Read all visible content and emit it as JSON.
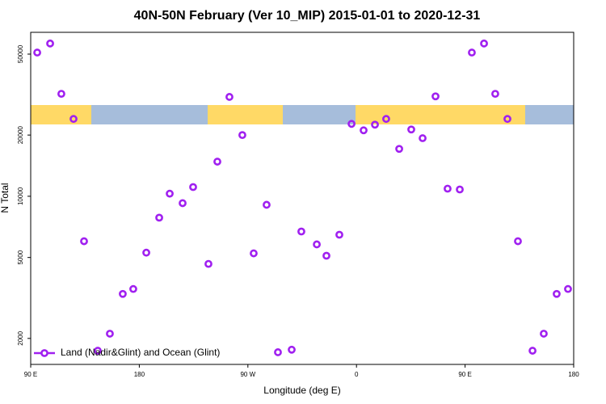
{
  "chart_data": {
    "type": "scatter",
    "title": "40N-50N February (Ver 10_MIP)   2015-01-01 to 2020-12-31",
    "x_label": "Longitude (deg E)",
    "y_label": "N Total",
    "log_y": true,
    "legend_position": "bottom-left",
    "xlim": [
      90,
      540
    ],
    "xticks": [
      {
        "value": 90,
        "label": "90 E"
      },
      {
        "value": 180,
        "label": "180"
      },
      {
        "value": 270,
        "label": "90 W"
      },
      {
        "value": 360,
        "label": "0"
      },
      {
        "value": 450,
        "label": "90 E"
      },
      {
        "value": 540,
        "label": "180"
      }
    ],
    "ylim": [
      1490,
      64000
    ],
    "yticks": [
      2000,
      5000,
      10000,
      20000,
      50000
    ],
    "series": [
      {
        "name": "Land (Nadir&Glint) and Ocean (Glint)",
        "color": "#a020f0",
        "x": [
          95.4,
          106.1,
          115.4,
          125.5,
          134.2,
          145.6,
          155.6,
          166.3,
          175.0,
          185.8,
          196.5,
          205.2,
          215.9,
          224.6,
          237.3,
          244.7,
          254.7,
          265.4,
          274.8,
          285.5,
          294.9,
          306.3,
          314.3,
          327.1,
          335.1,
          345.8,
          355.9,
          365.9,
          375.3,
          384.6,
          395.4,
          405.4,
          414.8,
          425.5,
          435.5,
          445.6,
          455.6,
          465.7,
          475.0,
          485.1,
          493.8,
          505.9,
          515.2,
          525.9,
          535.3
        ],
        "values": [
          50900,
          56400,
          31900,
          24000,
          6010,
          1740,
          2110,
          3310,
          3500,
          5280,
          7850,
          10300,
          9250,
          11100,
          4650,
          14800,
          30800,
          20000,
          5240,
          9080,
          1710,
          1760,
          6710,
          5800,
          5100,
          6470,
          22700,
          21100,
          22500,
          24000,
          17100,
          21300,
          19300,
          31000,
          10900,
          10800,
          50900,
          56400,
          31900,
          24000,
          6010,
          1740,
          2110,
          3310,
          3500
        ]
      }
    ]
  }
}
